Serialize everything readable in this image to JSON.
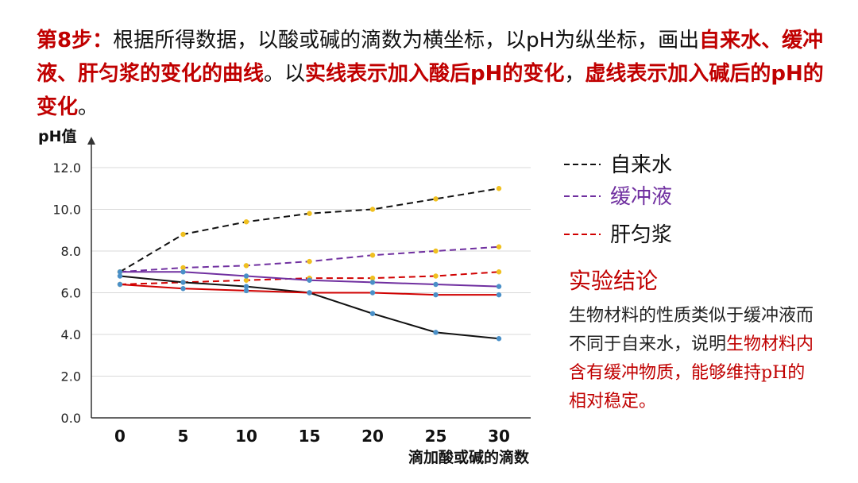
{
  "header": {
    "step_label": "第8步：",
    "seg1": "根据所得数据，以酸或碱的滴数为横坐标，以pH为纵坐标，画出",
    "seg2": "自来水、缓冲液、肝匀浆的变化的曲线",
    "seg3": "。以",
    "seg4": "实线表示加入酸后pH的变化",
    "seg5": "，",
    "seg6": "虚线表示加入碱后的pH的变化",
    "seg7": "。"
  },
  "legend": {
    "items": [
      {
        "label": "自来水",
        "color": "#111111"
      },
      {
        "label": "缓冲液",
        "color": "#7030a0"
      },
      {
        "label": "肝匀浆",
        "color": "#d00000"
      }
    ]
  },
  "conclusion": {
    "title": "实验结论",
    "text1": "生物材料的性质类似于缓冲液而不同于自来水，",
    "text2": "说明",
    "text3": "生物材料内含有缓冲物质，能够维持pH的相对稳定。"
  },
  "chart_data": {
    "type": "line",
    "ylabel": "pH值",
    "xlabel": "滴加酸或碱的滴数",
    "x": [
      0,
      5,
      10,
      15,
      20,
      25,
      30
    ],
    "ylim": [
      0,
      12
    ],
    "yticks": [
      "0.0",
      "2.0",
      "4.0",
      "6.0",
      "8.0",
      "10.0",
      "12.0"
    ],
    "grid": true,
    "marker_colors": {
      "alkali": "#f0c020",
      "acid": "#4a90c8"
    },
    "series": [
      {
        "name": "自来水",
        "treatment": "碱",
        "dashed": true,
        "color": "#111111",
        "values": [
          7.0,
          8.8,
          9.4,
          9.8,
          10.0,
          10.5,
          11.0
        ]
      },
      {
        "name": "缓冲液",
        "treatment": "碱",
        "dashed": true,
        "color": "#7030a0",
        "values": [
          7.0,
          7.2,
          7.3,
          7.5,
          7.8,
          8.0,
          8.2
        ]
      },
      {
        "name": "肝匀浆",
        "treatment": "碱",
        "dashed": true,
        "color": "#d00000",
        "values": [
          6.4,
          6.5,
          6.6,
          6.7,
          6.7,
          6.8,
          7.0
        ]
      },
      {
        "name": "自来水",
        "treatment": "酸",
        "dashed": false,
        "color": "#111111",
        "values": [
          6.8,
          6.5,
          6.3,
          6.0,
          5.0,
          4.1,
          3.8
        ]
      },
      {
        "name": "缓冲液",
        "treatment": "酸",
        "dashed": false,
        "color": "#7030a0",
        "values": [
          7.0,
          7.0,
          6.8,
          6.6,
          6.5,
          6.4,
          6.3
        ]
      },
      {
        "name": "肝匀浆",
        "treatment": "酸",
        "dashed": false,
        "color": "#d00000",
        "values": [
          6.4,
          6.2,
          6.1,
          6.0,
          6.0,
          5.9,
          5.9
        ]
      }
    ]
  }
}
